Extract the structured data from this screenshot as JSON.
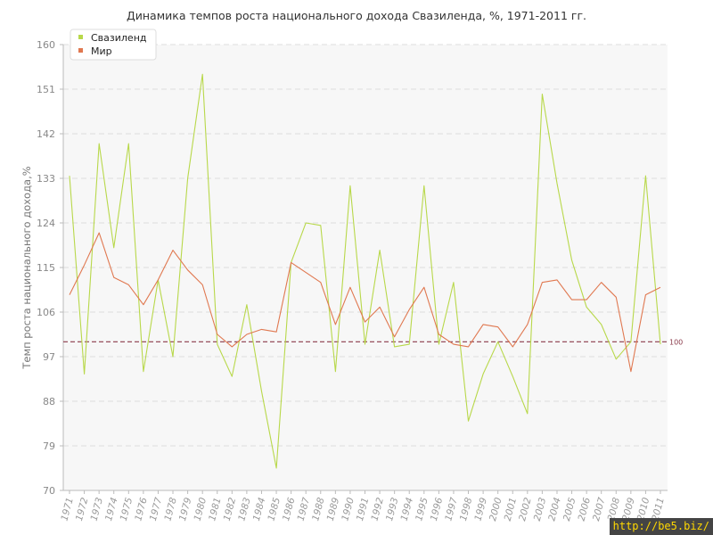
{
  "chart_data": {
    "type": "line",
    "title": "Динамика темпов роста национального дохода Свазиленда, %, 1971-2011 гг.",
    "ylabel": "Темп роста национального дохода,%",
    "xlabel": "",
    "ylim": [
      70,
      160
    ],
    "yticks": [
      70,
      79,
      88,
      97,
      106,
      115,
      124,
      133,
      142,
      151,
      160
    ],
    "grid": true,
    "legend_position": "top-left",
    "categories": [
      "1971",
      "1972",
      "1973",
      "1974",
      "1975",
      "1976",
      "1977",
      "1978",
      "1979",
      "1980",
      "1981",
      "1982",
      "1983",
      "1984",
      "1985",
      "1986",
      "1987",
      "1988",
      "1989",
      "1990",
      "1991",
      "1992",
      "1993",
      "1994",
      "1995",
      "1996",
      "1997",
      "1998",
      "1999",
      "2000",
      "2001",
      "2002",
      "2003",
      "2004",
      "2005",
      "2006",
      "2007",
      "2008",
      "2009",
      "2010",
      "2011"
    ],
    "series": [
      {
        "name": "Свазиленд",
        "color": "#b8d84a",
        "values": [
          133.5,
          93.5,
          140,
          119,
          140,
          94,
          112.5,
          97,
          133,
          154,
          99.5,
          93,
          107.5,
          90,
          74.5,
          116,
          124,
          123.5,
          94,
          131.5,
          99.5,
          118.5,
          99,
          99.5,
          131.5,
          99.5,
          112,
          84,
          93.5,
          100,
          93,
          85.5,
          150,
          132,
          116.5,
          107,
          103.5,
          96.5,
          100,
          133.5,
          99.5
        ]
      },
      {
        "name": "Мир",
        "color": "#e07850",
        "values": [
          109.5,
          115.5,
          122,
          113,
          111.5,
          107.5,
          112.5,
          118.5,
          114.5,
          111.5,
          101.5,
          99,
          101.5,
          102.5,
          102,
          116,
          114,
          112,
          103.5,
          111,
          104,
          107,
          101,
          106.5,
          111,
          101.5,
          99.5,
          99,
          103.5,
          103,
          99,
          103.5,
          112,
          112.5,
          108.5,
          108.5,
          112,
          109,
          94,
          109.5,
          111
        ]
      }
    ],
    "reference_line": {
      "value": 100,
      "label": "100",
      "color": "#8a3a4a"
    }
  },
  "watermark": "http://be5.biz/"
}
